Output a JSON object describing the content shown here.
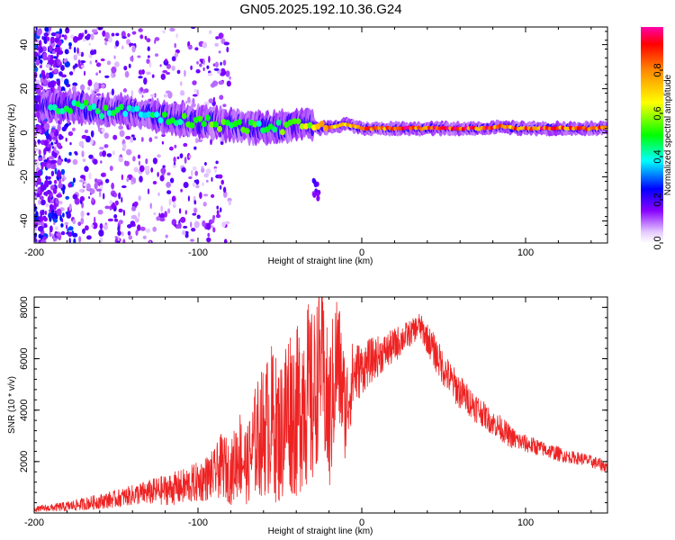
{
  "title": "GN05.2025.192.10.36.G24",
  "colors": {
    "snr_line": "#ee2222",
    "frame": "#000000"
  },
  "colorbar": {
    "label": "Normalized spectral amplitude",
    "ticks": [
      "0.0",
      "0.2",
      "0.4",
      "0.6",
      "0.8"
    ],
    "tick_values": [
      0.0,
      0.2,
      0.4,
      0.6,
      0.8
    ],
    "range": [
      0,
      1
    ]
  },
  "chart_data": [
    {
      "type": "heatmap",
      "xlabel": "Height of straight line (km)",
      "ylabel": "Frequency (Hz)",
      "xlim": [
        -200,
        150
      ],
      "ylim": [
        -50,
        48
      ],
      "x_ticks": [
        "-200",
        "-100",
        "0",
        "100"
      ],
      "x_tick_values": [
        -200,
        -100,
        0,
        100
      ],
      "y_ticks": [
        "-40",
        "-20",
        "0",
        "20",
        "40"
      ],
      "y_tick_values": [
        -40,
        -20,
        0,
        20,
        40
      ],
      "ridge": {
        "x": [
          -190,
          -175,
          -160,
          -145,
          -130,
          -115,
          -100,
          -85,
          -70,
          -55,
          -45,
          -35,
          -25,
          -15,
          -10,
          0,
          25,
          50,
          75,
          85,
          95,
          110,
          130,
          150
        ],
        "frequency": [
          12,
          12,
          10,
          10,
          8,
          6,
          5,
          4,
          3,
          2,
          3,
          5,
          2,
          3,
          4,
          2,
          2,
          2,
          2,
          3,
          2,
          2,
          2,
          2
        ],
        "amplitude": [
          0.45,
          0.5,
          0.5,
          0.45,
          0.45,
          0.5,
          0.55,
          0.6,
          0.55,
          0.5,
          0.6,
          0.65,
          0.8,
          0.85,
          0.8,
          0.9,
          0.95,
          0.95,
          0.95,
          0.85,
          0.9,
          0.95,
          0.95,
          0.9
        ]
      }
    },
    {
      "type": "line",
      "xlabel": "Height of straight line (km)",
      "ylabel": "SNR (10 * v/v)",
      "xlim": [
        -200,
        150
      ],
      "ylim": [
        0,
        8400
      ],
      "x_ticks": [
        "-200",
        "-100",
        "0",
        "100"
      ],
      "x_tick_values": [
        -200,
        -100,
        0,
        100
      ],
      "y_ticks": [
        "2000",
        "4000",
        "6000",
        "8000"
      ],
      "y_tick_values": [
        2000,
        4000,
        6000,
        8000
      ],
      "series": [
        {
          "x": [
            -200,
            -190,
            -180,
            -170,
            -160,
            -150,
            -140,
            -130,
            -120,
            -110,
            -100,
            -90,
            -85,
            -80,
            -75,
            -70,
            -65,
            -60,
            -55,
            -50,
            -45,
            -40,
            -35,
            -30,
            -25,
            -20,
            -15,
            -10,
            -5,
            0,
            5,
            10,
            15,
            20,
            25,
            30,
            35,
            40,
            45,
            50,
            55,
            60,
            65,
            70,
            75,
            80,
            85,
            90,
            95,
            100,
            105,
            110,
            115,
            120,
            125,
            130,
            135,
            140,
            145,
            150
          ],
          "y": [
            150,
            200,
            250,
            350,
            450,
            550,
            700,
            800,
            900,
            1000,
            1200,
            1500,
            1900,
            1500,
            2400,
            1800,
            2800,
            3200,
            3600,
            3000,
            4200,
            3800,
            4800,
            4200,
            6000,
            3500,
            6200,
            4000,
            5400,
            5600,
            5900,
            6100,
            6300,
            6500,
            6800,
            7000,
            7300,
            6800,
            6200,
            5600,
            5100,
            4700,
            4400,
            4100,
            3800,
            3500,
            3300,
            3000,
            2800,
            2700,
            2600,
            2500,
            2400,
            2300,
            2200,
            2150,
            2100,
            2000,
            1900,
            1800
          ],
          "spread": [
            100,
            150,
            200,
            250,
            300,
            350,
            400,
            500,
            600,
            700,
            800,
            1000,
            1300,
            1200,
            1800,
            1500,
            2200,
            2600,
            3000,
            2800,
            3400,
            3300,
            3800,
            3600,
            3000,
            3200,
            2800,
            2000,
            1400,
            1000,
            900,
            800,
            700,
            700,
            600,
            500,
            500,
            600,
            700,
            700,
            700,
            700,
            600,
            600,
            500,
            500,
            500,
            450,
            400,
            350,
            350,
            300,
            300,
            300,
            250,
            250,
            250,
            250,
            250,
            250
          ]
        }
      ]
    }
  ]
}
